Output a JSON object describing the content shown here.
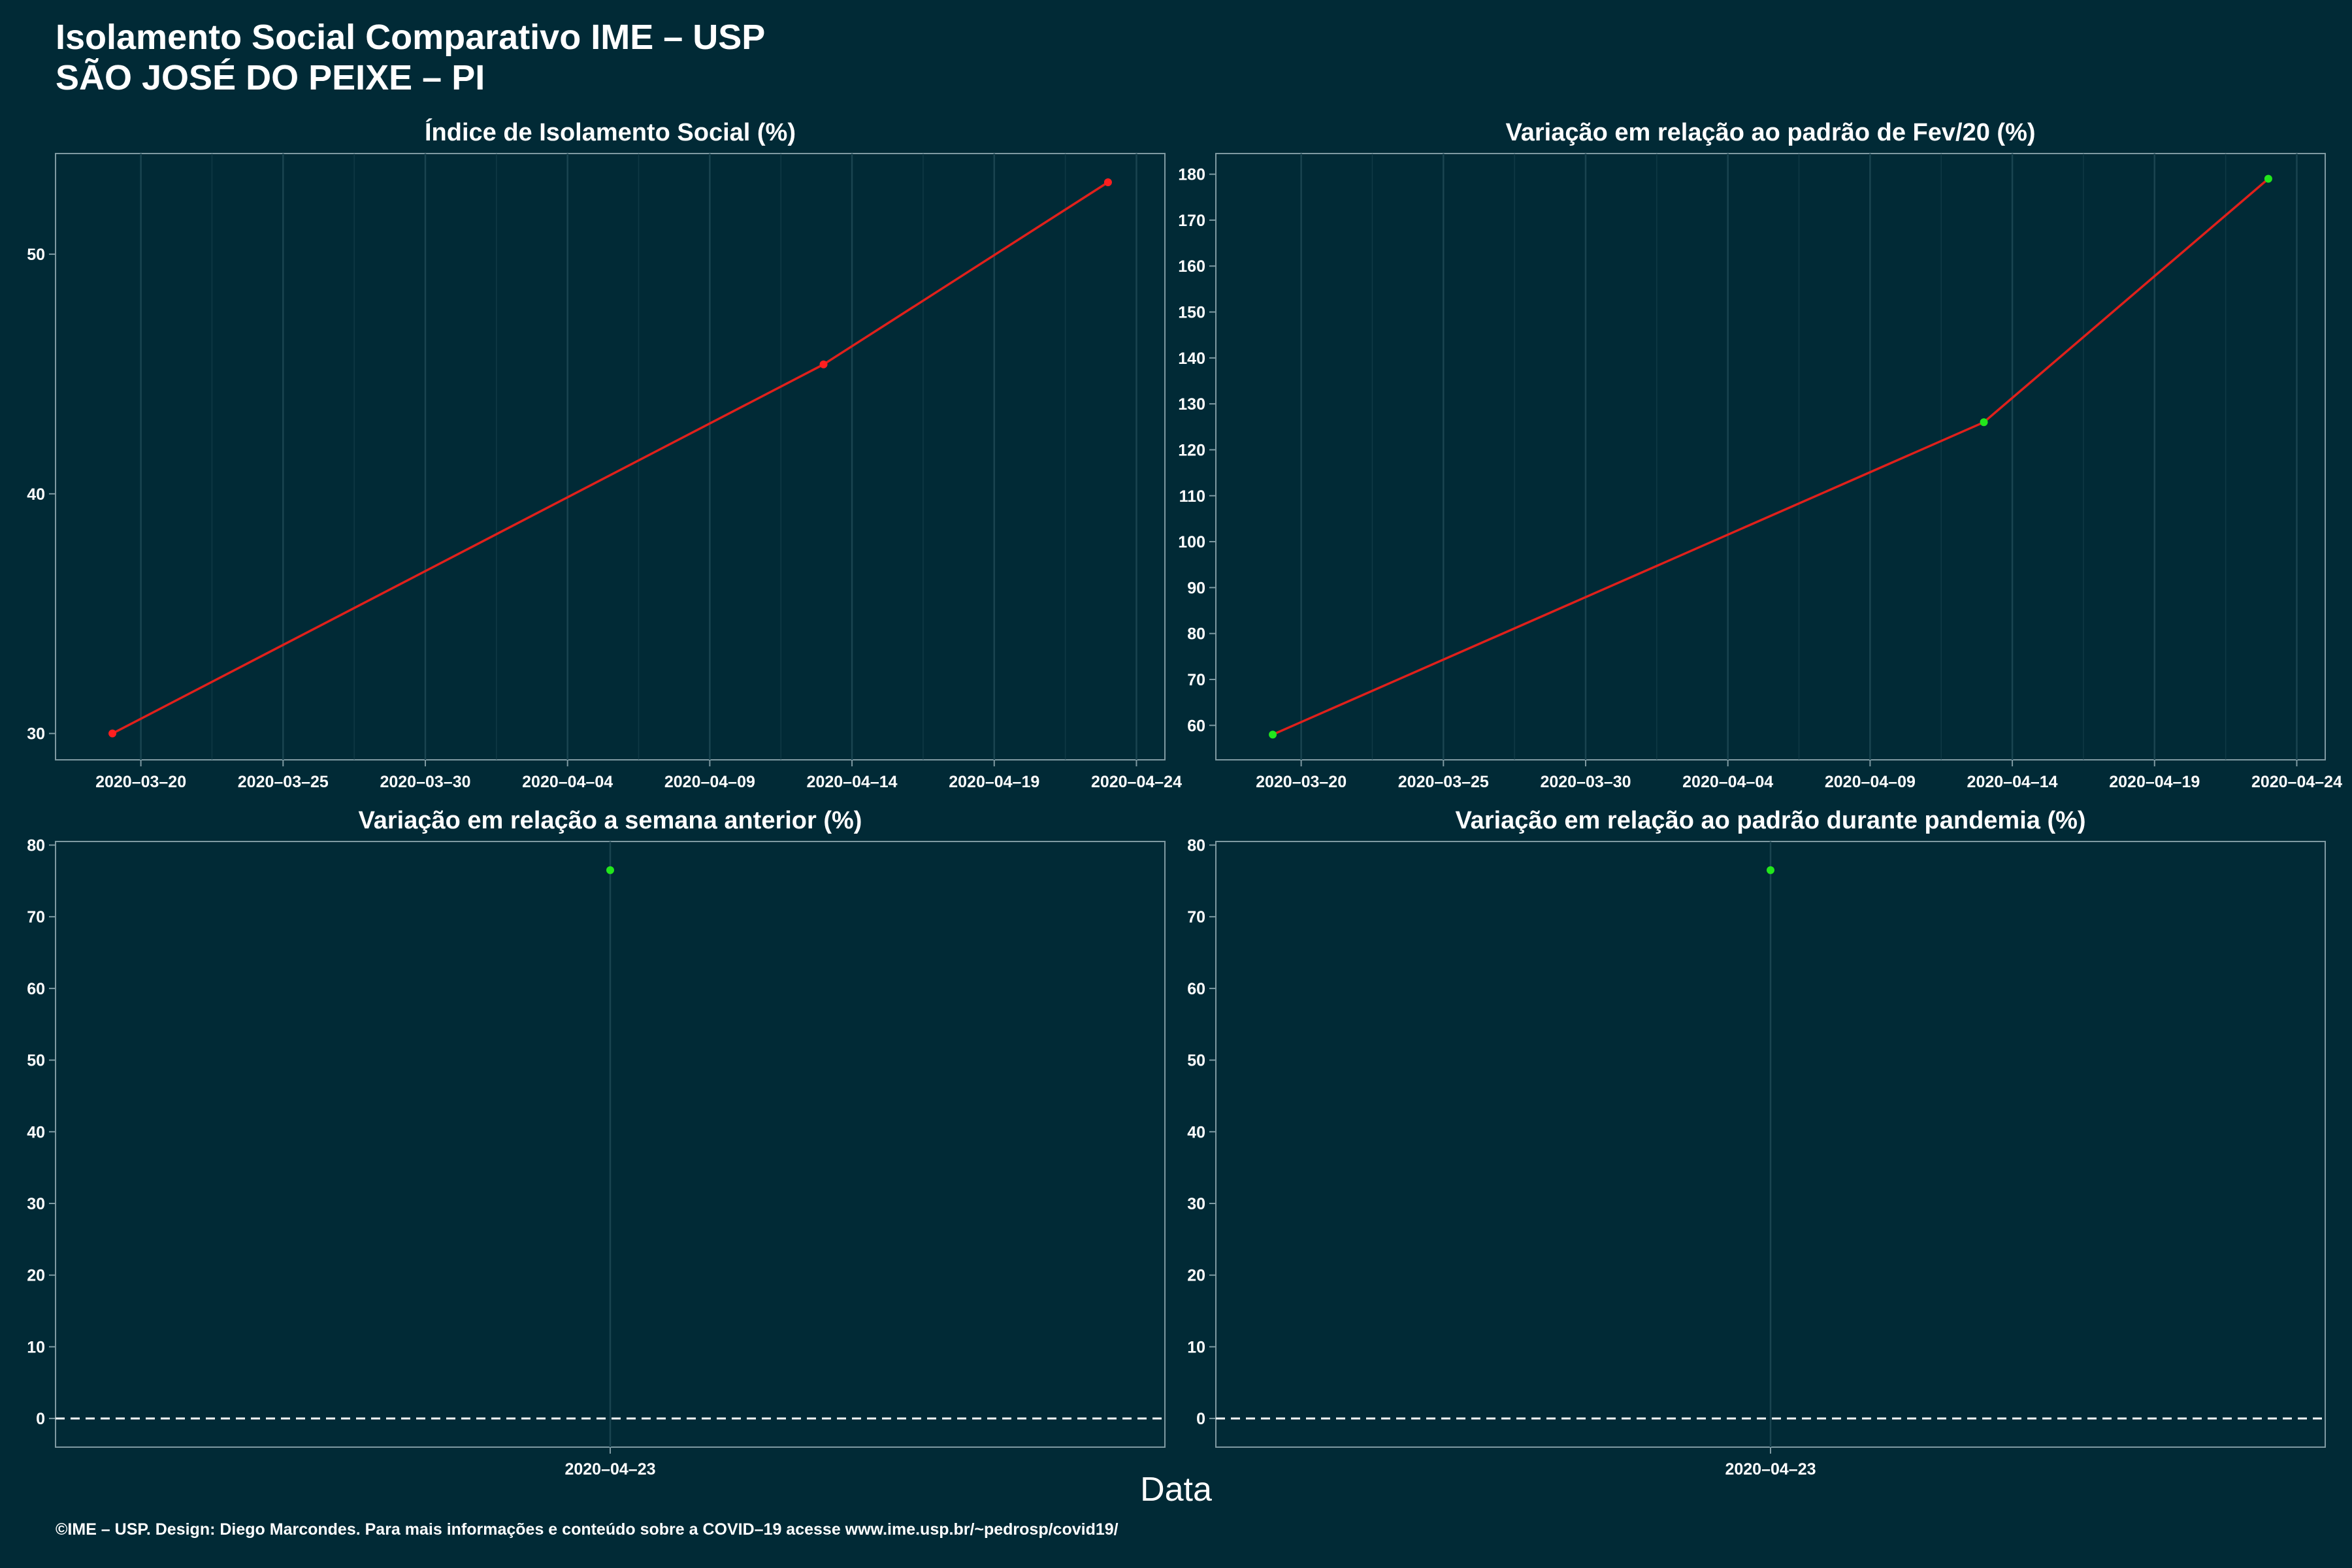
{
  "header": {
    "title": "Isolamento Social Comparativo IME – USP",
    "subtitle": "SÃO JOSÉ DO PEIXE – PI"
  },
  "xlabel": "Data",
  "footer": "©IME – USP. Design: Diego Marcondes. Para mais informações e conteúdo sobre a COVID–19 acesse www.ime.usp.br/~pedrosp/covid19/",
  "colors": {
    "background": "#012a36",
    "line": "#e0201b",
    "point_red": "#ff1f1f",
    "point_green": "#22e61c",
    "grid": "#1a4450",
    "frame": "#7f9aa2"
  },
  "chart_data": [
    {
      "type": "line",
      "title": "Índice de Isolamento Social (%)",
      "x": [
        "2020-03-19",
        "2020-04-13",
        "2020-04-23"
      ],
      "values": [
        30.0,
        45.4,
        53.0
      ],
      "x_ticks": [
        "2020–03–20",
        "2020–03–25",
        "2020–03–30",
        "2020–04–04",
        "2020–04–09",
        "2020–04–14",
        "2020–04–19",
        "2020–04–24"
      ],
      "y_ticks": [
        "30",
        "40",
        "50"
      ],
      "xlim": [
        "2020-03-17",
        "2020-04-25"
      ],
      "ylim": [
        28.9,
        54.2
      ],
      "point_color": "red",
      "grid": true,
      "zero_line": false
    },
    {
      "type": "line",
      "title": "Variação em relação ao padrão de Fev/20 (%)",
      "x": [
        "2020-03-19",
        "2020-04-13",
        "2020-04-23"
      ],
      "values": [
        58,
        126,
        179
      ],
      "x_ticks": [
        "2020–03–20",
        "2020–03–25",
        "2020–03–30",
        "2020–04–04",
        "2020–04–09",
        "2020–04–14",
        "2020–04–19",
        "2020–04–24"
      ],
      "y_ticks": [
        "60",
        "70",
        "80",
        "90",
        "100",
        "110",
        "120",
        "130",
        "140",
        "150",
        "160",
        "170",
        "180"
      ],
      "xlim": [
        "2020-03-17",
        "2020-04-25"
      ],
      "ylim": [
        52.5,
        184.5
      ],
      "point_color": "green",
      "grid": true,
      "zero_line": false
    },
    {
      "type": "scatter",
      "title": "Variação em relação a semana anterior (%)",
      "x": [
        "2020-04-23"
      ],
      "values": [
        76.5
      ],
      "x_ticks": [
        "2020–04–23"
      ],
      "y_ticks": [
        "0",
        "10",
        "20",
        "30",
        "40",
        "50",
        "60",
        "70",
        "80"
      ],
      "ylim": [
        -4,
        80.5
      ],
      "point_color": "green",
      "grid": true,
      "zero_line": true
    },
    {
      "type": "scatter",
      "title": "Variação em relação ao padrão durante pandemia (%)",
      "x": [
        "2020-04-23"
      ],
      "values": [
        76.5
      ],
      "x_ticks": [
        "2020–04–23"
      ],
      "y_ticks": [
        "0",
        "10",
        "20",
        "30",
        "40",
        "50",
        "60",
        "70",
        "80"
      ],
      "ylim": [
        -4,
        80.5
      ],
      "point_color": "green",
      "grid": true,
      "zero_line": true
    }
  ]
}
